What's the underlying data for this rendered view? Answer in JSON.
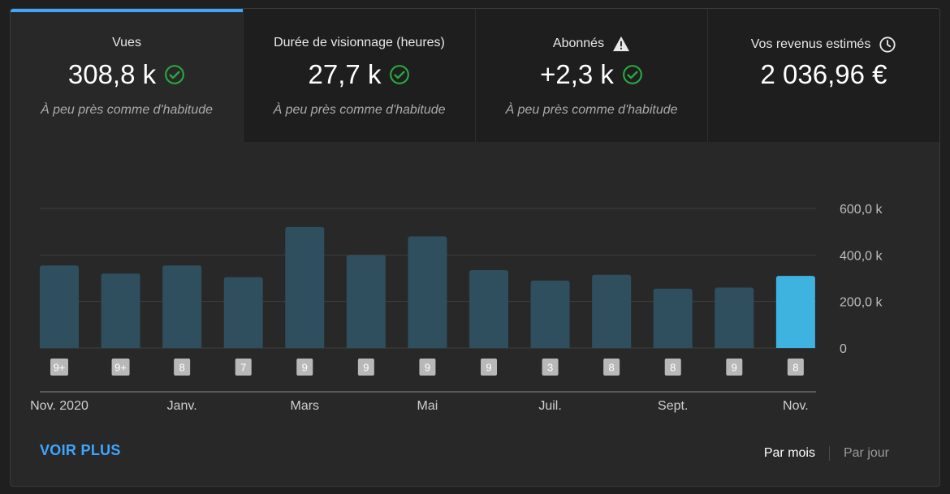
{
  "tabs": [
    {
      "title": "Vues",
      "value": "308,8 k",
      "subtitle": "À peu près comme d'habitude",
      "status_icon": "check-circle-icon"
    },
    {
      "title": "Durée de visionnage (heures)",
      "value": "27,7 k",
      "subtitle": "À peu près comme d'habitude",
      "status_icon": "check-circle-icon"
    },
    {
      "title": "Abonnés",
      "title_icon": "warning-icon",
      "value": "+2,3 k",
      "subtitle": "À peu près comme d'habitude",
      "status_icon": "check-circle-icon"
    },
    {
      "title": "Vos revenus estimés",
      "title_icon": "clock-icon",
      "value": "2 036,96 €"
    }
  ],
  "colors": {
    "accent": "#3ea6ff",
    "bar": "#2f4f5e",
    "bar_highlight": "#3fb3e0",
    "check": "#2ba640",
    "badge_bg": "#b8b8b8",
    "grid": "#3e3e3e"
  },
  "chart_data": {
    "type": "bar",
    "categories": [
      "Nov. 2020",
      "",
      "Janv.",
      "",
      "Mars",
      "",
      "Mai",
      "",
      "Juil.",
      "",
      "Sept.",
      "",
      "Nov."
    ],
    "values": [
      355,
      320,
      355,
      305,
      520,
      400,
      480,
      335,
      290,
      315,
      255,
      260,
      310
    ],
    "badges": [
      "9+",
      "9+",
      "8",
      "7",
      "9",
      "9",
      "9",
      "9",
      "3",
      "8",
      "8",
      "9",
      "8"
    ],
    "y_ticks": [
      "0",
      "200,0 k",
      "400,0 k",
      "600,0 k"
    ],
    "y_tick_values": [
      0,
      200,
      400,
      600
    ],
    "ylim": [
      0,
      600
    ],
    "highlight_index": 12,
    "grid": true
  },
  "footer": {
    "voir_plus": "VOIR PLUS",
    "par_mois": "Par mois",
    "par_jour": "Par jour"
  }
}
